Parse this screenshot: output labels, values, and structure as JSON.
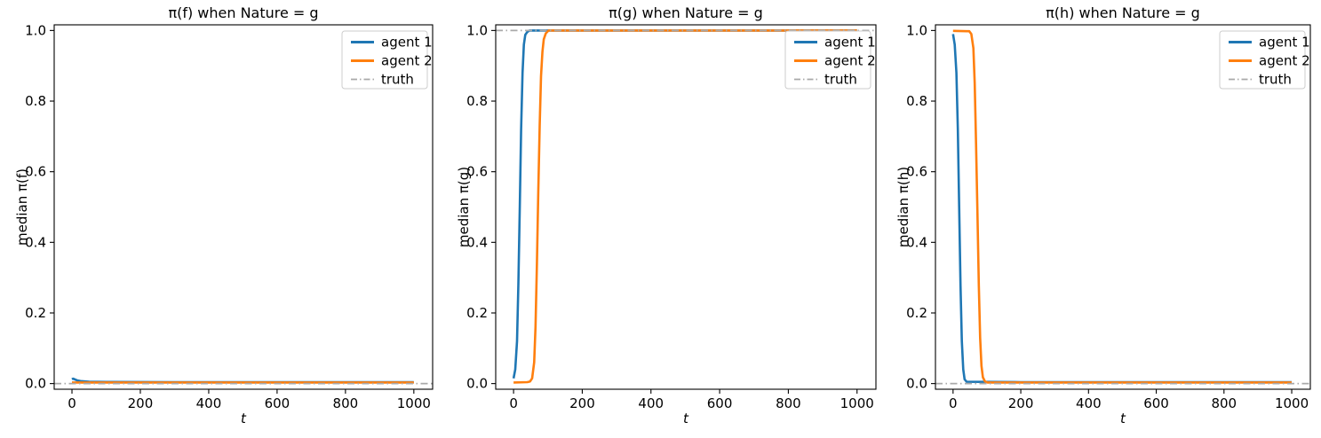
{
  "figure": {
    "background": "#ffffff",
    "text_color": "#000000",
    "spine_color": "#000000",
    "legend_border_color": "#cccccc",
    "legend_background": "#ffffff"
  },
  "chart_data": [
    {
      "type": "line",
      "title": "π(f) when Nature = g",
      "xlabel": "t",
      "ylabel": "median π(f)",
      "xlim": [
        -52,
        1055
      ],
      "ylim": [
        -0.016,
        1.016
      ],
      "xticks": [
        0,
        200,
        400,
        600,
        800,
        1000
      ],
      "xtick_labels": [
        "0",
        "200",
        "400",
        "600",
        "800",
        "1000"
      ],
      "yticks": [
        0.0,
        0.2,
        0.4,
        0.6,
        0.8,
        1.0
      ],
      "ytick_labels": [
        "0.0",
        "0.2",
        "0.4",
        "0.6",
        "0.8",
        "1.0"
      ],
      "grid": false,
      "legend_position": "upper-right",
      "legend_entries": [
        "agent 1",
        "agent 2",
        "truth"
      ],
      "series": [
        {
          "name": "agent 1",
          "color": "#1f77b4",
          "style": "solid",
          "width": 2.6,
          "points": [
            [
              0,
              0.012
            ],
            [
              3,
              0.014
            ],
            [
              6,
              0.013
            ],
            [
              10,
              0.011
            ],
            [
              15,
              0.009
            ],
            [
              25,
              0.007
            ],
            [
              50,
              0.005
            ],
            [
              100,
              0.0045
            ],
            [
              300,
              0.004
            ],
            [
              1000,
              0.004
            ]
          ]
        },
        {
          "name": "agent 2",
          "color": "#ff7f0e",
          "style": "solid",
          "width": 2.6,
          "points": [
            [
              0,
              0.003
            ],
            [
              250,
              0.003
            ],
            [
              500,
              0.003
            ],
            [
              750,
              0.003
            ],
            [
              1000,
              0.003
            ]
          ]
        },
        {
          "name": "truth",
          "color": "#a9a9a9",
          "style": "dashdot",
          "width": 1.8,
          "truth_value": 0.0,
          "points": [
            [
              -52,
              0.0
            ],
            [
              1055,
              0.0
            ]
          ]
        }
      ]
    },
    {
      "type": "line",
      "title": "π(g) when Nature = g",
      "xlabel": "t",
      "ylabel": "median π(g)",
      "xlim": [
        -52,
        1055
      ],
      "ylim": [
        -0.016,
        1.016
      ],
      "xticks": [
        0,
        200,
        400,
        600,
        800,
        1000
      ],
      "xtick_labels": [
        "0",
        "200",
        "400",
        "600",
        "800",
        "1000"
      ],
      "yticks": [
        0.0,
        0.2,
        0.4,
        0.6,
        0.8,
        1.0
      ],
      "ytick_labels": [
        "0.0",
        "0.2",
        "0.4",
        "0.6",
        "0.8",
        "1.0"
      ],
      "grid": false,
      "legend_position": "upper-right",
      "legend_entries": [
        "agent 1",
        "agent 2",
        "truth"
      ],
      "series": [
        {
          "name": "agent 1",
          "color": "#1f77b4",
          "style": "solid",
          "width": 2.6,
          "points": [
            [
              0,
              0.015
            ],
            [
              5,
              0.04
            ],
            [
              10,
              0.12
            ],
            [
              14,
              0.28
            ],
            [
              18,
              0.5
            ],
            [
              22,
              0.72
            ],
            [
              26,
              0.88
            ],
            [
              30,
              0.96
            ],
            [
              34,
              0.988
            ],
            [
              40,
              0.996
            ],
            [
              46,
              1.0
            ],
            [
              200,
              1.0
            ],
            [
              600,
              1.0
            ],
            [
              1000,
              1.0
            ]
          ]
        },
        {
          "name": "agent 2",
          "color": "#ff7f0e",
          "style": "solid",
          "width": 2.6,
          "points": [
            [
              0,
              0.003
            ],
            [
              40,
              0.004
            ],
            [
              48,
              0.006
            ],
            [
              54,
              0.015
            ],
            [
              60,
              0.06
            ],
            [
              64,
              0.16
            ],
            [
              68,
              0.34
            ],
            [
              72,
              0.54
            ],
            [
              76,
              0.73
            ],
            [
              80,
              0.87
            ],
            [
              84,
              0.94
            ],
            [
              88,
              0.975
            ],
            [
              94,
              0.992
            ],
            [
              102,
              1.0
            ],
            [
              300,
              1.0
            ],
            [
              700,
              1.0
            ],
            [
              1000,
              1.0
            ]
          ]
        },
        {
          "name": "truth",
          "color": "#a9a9a9",
          "style": "dashdot",
          "width": 1.8,
          "truth_value": 1.0,
          "points": [
            [
              -52,
              1.0
            ],
            [
              1055,
              1.0
            ]
          ]
        }
      ]
    },
    {
      "type": "line",
      "title": "π(h) when Nature = g",
      "xlabel": "t",
      "ylabel": "median π(h)",
      "xlim": [
        -52,
        1055
      ],
      "ylim": [
        -0.016,
        1.016
      ],
      "xticks": [
        0,
        200,
        400,
        600,
        800,
        1000
      ],
      "xtick_labels": [
        "0",
        "200",
        "400",
        "600",
        "800",
        "1000"
      ],
      "yticks": [
        0.0,
        0.2,
        0.4,
        0.6,
        0.8,
        1.0
      ],
      "ytick_labels": [
        "0.0",
        "0.2",
        "0.4",
        "0.6",
        "0.8",
        "1.0"
      ],
      "grid": false,
      "legend_position": "upper-right",
      "legend_entries": [
        "agent 1",
        "agent 2",
        "truth"
      ],
      "series": [
        {
          "name": "agent 1",
          "color": "#1f77b4",
          "style": "solid",
          "width": 2.6,
          "points": [
            [
              0,
              0.99
            ],
            [
              5,
              0.96
            ],
            [
              10,
              0.88
            ],
            [
              14,
              0.72
            ],
            [
              18,
              0.5
            ],
            [
              22,
              0.28
            ],
            [
              26,
              0.12
            ],
            [
              30,
              0.04
            ],
            [
              34,
              0.012
            ],
            [
              40,
              0.005
            ],
            [
              200,
              0.004
            ],
            [
              600,
              0.004
            ],
            [
              1000,
              0.004
            ]
          ]
        },
        {
          "name": "agent 2",
          "color": "#ff7f0e",
          "style": "solid",
          "width": 2.6,
          "points": [
            [
              0,
              0.999
            ],
            [
              40,
              0.998
            ],
            [
              48,
              0.998
            ],
            [
              54,
              0.99
            ],
            [
              60,
              0.95
            ],
            [
              64,
              0.85
            ],
            [
              68,
              0.68
            ],
            [
              72,
              0.48
            ],
            [
              76,
              0.28
            ],
            [
              80,
              0.13
            ],
            [
              84,
              0.05
            ],
            [
              88,
              0.018
            ],
            [
              94,
              0.006
            ],
            [
              102,
              0.003
            ],
            [
              300,
              0.003
            ],
            [
              700,
              0.003
            ],
            [
              1000,
              0.003
            ]
          ]
        },
        {
          "name": "truth",
          "color": "#a9a9a9",
          "style": "dashdot",
          "width": 1.8,
          "truth_value": 0.0,
          "points": [
            [
              -52,
              0.0
            ],
            [
              1055,
              0.0
            ]
          ]
        }
      ]
    }
  ]
}
